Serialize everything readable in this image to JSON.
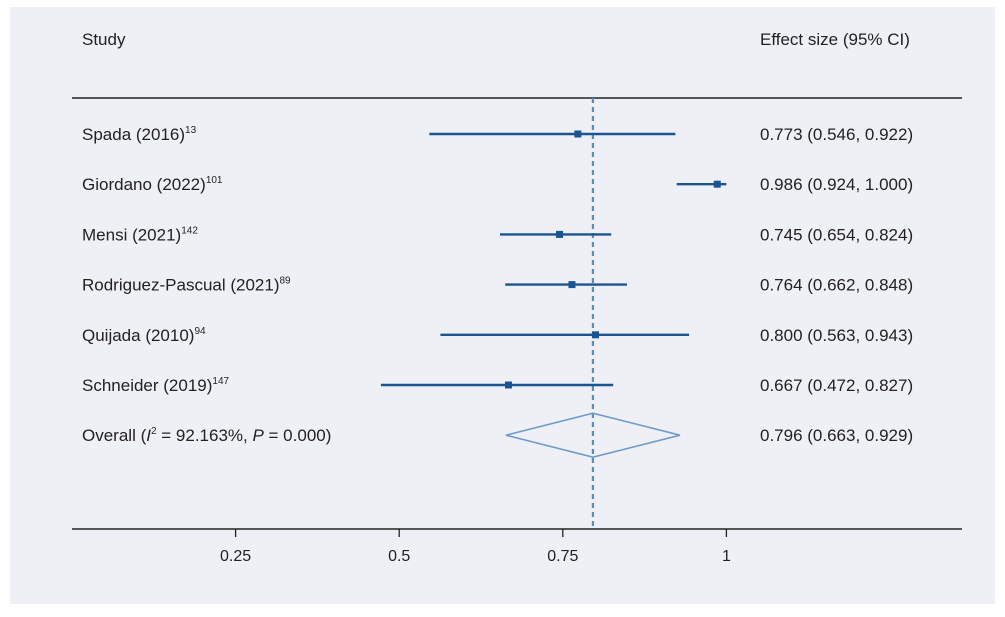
{
  "chart_data": {
    "type": "forest",
    "header": {
      "study": "Study",
      "effect": "Effect size (95% CI)"
    },
    "x_axis": {
      "ticks": [
        0.25,
        0.5,
        0.75,
        1
      ],
      "tick_labels": [
        "0.25",
        "0.5",
        "0.75",
        "1"
      ],
      "xlim": [
        0.0,
        1.36
      ]
    },
    "reference_line": 0.796,
    "studies": [
      {
        "name": "Spada (2016)",
        "ref": "13",
        "estimate": 0.773,
        "lower": 0.546,
        "upper": 0.922,
        "label": "0.773 (0.546, 0.922)"
      },
      {
        "name": "Giordano (2022)",
        "ref": "101",
        "estimate": 0.986,
        "lower": 0.924,
        "upper": 1.0,
        "label": "0.986 (0.924, 1.000)"
      },
      {
        "name": "Mensi (2021)",
        "ref": "142",
        "estimate": 0.745,
        "lower": 0.654,
        "upper": 0.824,
        "label": "0.745 (0.654, 0.824)"
      },
      {
        "name": "Rodriguez-Pascual (2021)",
        "ref": "89",
        "estimate": 0.764,
        "lower": 0.662,
        "upper": 0.848,
        "label": "0.764 (0.662, 0.848)"
      },
      {
        "name": "Quijada (2010)",
        "ref": "94",
        "estimate": 0.8,
        "lower": 0.563,
        "upper": 0.943,
        "label": "0.800 (0.563, 0.943)"
      },
      {
        "name": "Schneider (2019)",
        "ref": "147",
        "estimate": 0.667,
        "lower": 0.472,
        "upper": 0.827,
        "label": "0.667 (0.472, 0.827)"
      }
    ],
    "overall": {
      "prefix": "Overall (",
      "i_symbol": "I",
      "i_sup": "2",
      "i_value": " = 92.163%, ",
      "p_symbol": "P",
      "p_value": " = 0.000)",
      "estimate": 0.796,
      "lower": 0.663,
      "upper": 0.929,
      "label": "0.796 (0.663, 0.929)"
    },
    "colors": {
      "background": "#eef0f5",
      "ci_line": "#1a5591",
      "marker": "#1a5591",
      "diamond": "#6f9ccc",
      "reference": "#5b8cc0",
      "axis": "#222222",
      "text": "#222222"
    }
  }
}
